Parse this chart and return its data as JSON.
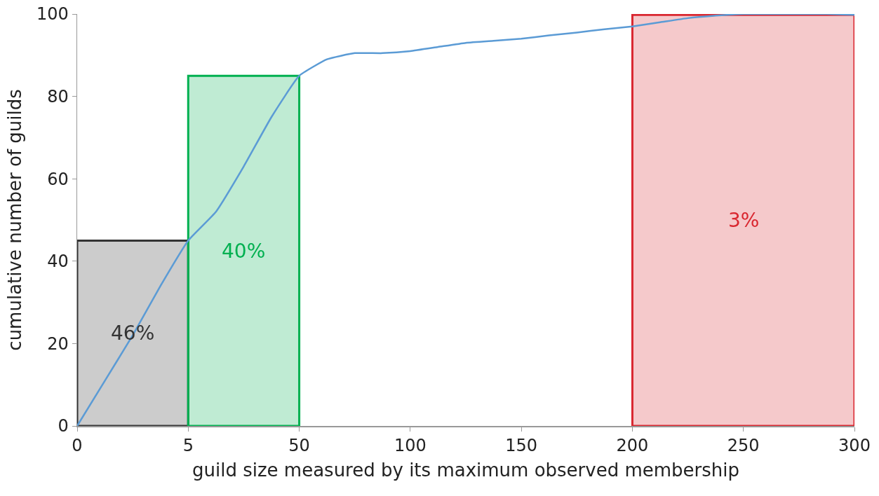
{
  "chart_data": {
    "type": "line",
    "xlabel": "guild size measured by its maximum observed membership",
    "ylabel": "cumulative number of guilds",
    "categories": [
      "0",
      null,
      null,
      null,
      "5",
      null,
      null,
      null,
      "50",
      null,
      null,
      null,
      "100",
      null,
      null,
      null,
      "150",
      null,
      null,
      null,
      "200",
      null,
      null,
      null,
      "250",
      null,
      null,
      null,
      "300"
    ],
    "series": [
      {
        "color": "#5b9bd5",
        "values": [
          0,
          11,
          22,
          34,
          45,
          52,
          63,
          75,
          85,
          89,
          90.5,
          90.5,
          91,
          92,
          93,
          93.5,
          94,
          94.8,
          95.5,
          96.3,
          97,
          98,
          99,
          99.6,
          100,
          100,
          100,
          100,
          99.8
        ]
      }
    ],
    "ylim": [
      0,
      100
    ],
    "yticks": [
      0,
      20,
      40,
      60,
      80,
      100
    ],
    "grid": false,
    "legend": false,
    "marker": "none",
    "line_style": "solid",
    "bands": [
      {
        "axis": "x",
        "from": "0",
        "to": "5",
        "label": "46%",
        "color": "#333333"
      },
      {
        "axis": "x",
        "from": "5",
        "to": "50",
        "label": "40%",
        "color": "#00b050"
      },
      {
        "axis": "x",
        "from": "200",
        "to": "300",
        "label": "3%",
        "color": "#d9262f"
      }
    ]
  }
}
